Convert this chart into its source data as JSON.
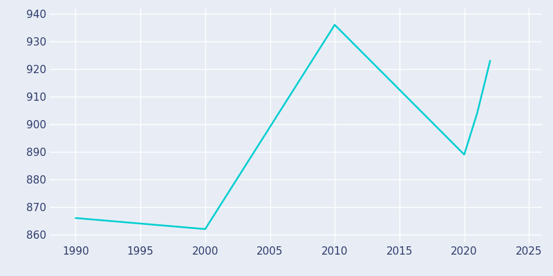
{
  "years": [
    1990,
    2000,
    2010,
    2020,
    2021,
    2022
  ],
  "population": [
    866,
    862,
    936,
    889,
    904,
    923
  ],
  "line_color": "#00CED1",
  "bg_color": "#E8EDF5",
  "plot_bg_color": "#E8EDF5",
  "grid_color": "#FFFFFF",
  "xlim": [
    1988,
    2026
  ],
  "ylim": [
    857,
    942
  ],
  "xticks": [
    1990,
    1995,
    2000,
    2005,
    2010,
    2015,
    2020,
    2025
  ],
  "yticks": [
    860,
    870,
    880,
    890,
    900,
    910,
    920,
    930,
    940
  ],
  "tick_color": "#2D3A6B",
  "tick_fontsize": 11
}
